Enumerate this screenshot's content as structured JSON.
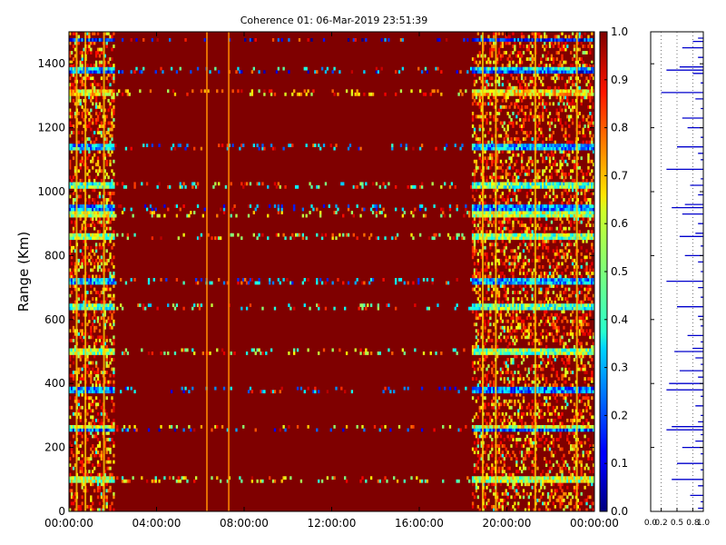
{
  "chart_data": [
    {
      "type": "heatmap",
      "title": "Coherence 01: 06-Mar-2019 23:51:39",
      "xlabel": "",
      "ylabel": "Range (Km)",
      "x_ticks": [
        "00:00:00",
        "04:00:00",
        "08:00:00",
        "12:00:00",
        "16:00:00",
        "20:00:00",
        "00:00:00"
      ],
      "x_range_hours": [
        0,
        24
      ],
      "y_ticks": [
        0,
        200,
        400,
        600,
        800,
        1000,
        1200,
        1400
      ],
      "ylim": [
        0,
        1500
      ],
      "grid": false,
      "colormap": "jet",
      "background_value": 1.0,
      "colorbar": {
        "ticks": [
          "0.0",
          "0.1",
          "0.2",
          "0.3",
          "0.4",
          "0.5",
          "0.6",
          "0.7",
          "0.8",
          "0.9",
          "1.0"
        ],
        "range": [
          0,
          1
        ]
      },
      "low_coherence_time_windows_hours": [
        [
          0,
          2.1
        ],
        [
          18.4,
          24
        ]
      ],
      "vertical_streaks_hours": [
        0.35,
        0.75,
        1.6,
        6.3,
        7.3,
        18.9,
        19.5,
        21.3,
        23.2
      ],
      "low_coherence_range_bands_km": [
        {
          "range": 1475,
          "value": 0.15
        },
        {
          "range": 1385,
          "value": 0.35
        },
        {
          "range": 1375,
          "value": 0.2
        },
        {
          "range": 1310,
          "value": 0.65
        },
        {
          "range": 1140,
          "value": 0.3
        },
        {
          "range": 1020,
          "value": 0.45
        },
        {
          "range": 950,
          "value": 0.25
        },
        {
          "range": 930,
          "value": 0.55
        },
        {
          "range": 860,
          "value": 0.5
        },
        {
          "range": 720,
          "value": 0.3
        },
        {
          "range": 640,
          "value": 0.45
        },
        {
          "range": 500,
          "value": 0.5
        },
        {
          "range": 380,
          "value": 0.25
        },
        {
          "range": 265,
          "value": 0.6
        },
        {
          "range": 255,
          "value": 0.2
        },
        {
          "range": 100,
          "value": 0.55
        }
      ]
    },
    {
      "type": "line",
      "title": "",
      "xlabel": "",
      "ylabel": "",
      "x_ticks": [
        "0.0",
        "0.2",
        "0.5",
        "0.8",
        "1.0"
      ],
      "xlim": [
        0,
        1
      ],
      "ylim": [
        0,
        1500
      ],
      "grid": true,
      "series": [
        {
          "color": "#0000cc",
          "values": [
            [
              1480,
              0.9
            ],
            [
              1470,
              0.8
            ],
            [
              1450,
              0.6
            ],
            [
              1420,
              0.9
            ],
            [
              1390,
              0.55
            ],
            [
              1380,
              0.3
            ],
            [
              1370,
              0.8
            ],
            [
              1340,
              0.95
            ],
            [
              1310,
              0.2
            ],
            [
              1290,
              0.85
            ],
            [
              1260,
              0.95
            ],
            [
              1230,
              0.6
            ],
            [
              1200,
              0.7
            ],
            [
              1170,
              0.95
            ],
            [
              1140,
              0.5
            ],
            [
              1120,
              0.9
            ],
            [
              1100,
              0.95
            ],
            [
              1070,
              0.3
            ],
            [
              1040,
              0.95
            ],
            [
              1020,
              0.75
            ],
            [
              990,
              0.9
            ],
            [
              960,
              0.65
            ],
            [
              950,
              0.4
            ],
            [
              930,
              0.6
            ],
            [
              900,
              0.9
            ],
            [
              870,
              0.85
            ],
            [
              860,
              0.55
            ],
            [
              830,
              0.95
            ],
            [
              800,
              0.65
            ],
            [
              780,
              0.9
            ],
            [
              750,
              0.95
            ],
            [
              720,
              0.3
            ],
            [
              700,
              0.9
            ],
            [
              670,
              0.95
            ],
            [
              640,
              0.5
            ],
            [
              610,
              0.9
            ],
            [
              580,
              0.95
            ],
            [
              550,
              0.7
            ],
            [
              530,
              0.95
            ],
            [
              510,
              0.8
            ],
            [
              500,
              0.45
            ],
            [
              480,
              0.85
            ],
            [
              460,
              0.95
            ],
            [
              440,
              0.55
            ],
            [
              420,
              0.9
            ],
            [
              400,
              0.35
            ],
            [
              380,
              0.3
            ],
            [
              360,
              0.95
            ],
            [
              330,
              0.85
            ],
            [
              300,
              0.95
            ],
            [
              280,
              0.9
            ],
            [
              265,
              0.4
            ],
            [
              255,
              0.3
            ],
            [
              240,
              0.95
            ],
            [
              220,
              0.85
            ],
            [
              200,
              0.6
            ],
            [
              180,
              0.95
            ],
            [
              150,
              0.5
            ],
            [
              130,
              0.95
            ],
            [
              100,
              0.4
            ],
            [
              80,
              0.9
            ],
            [
              50,
              0.75
            ],
            [
              30,
              0.95
            ],
            [
              10,
              0.9
            ]
          ]
        }
      ]
    }
  ]
}
